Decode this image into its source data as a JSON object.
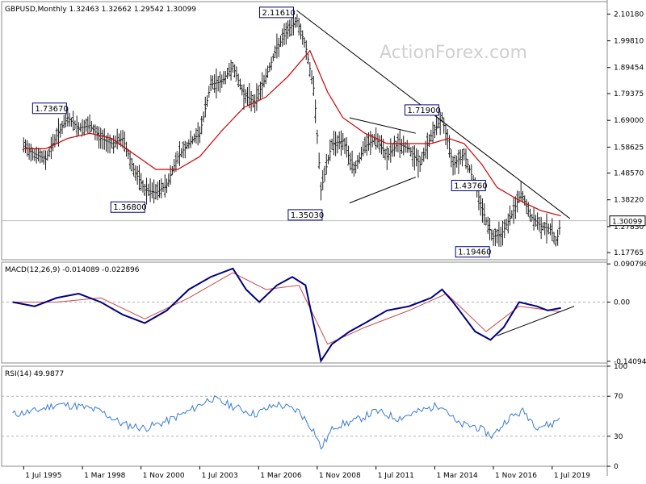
{
  "chart_data": {
    "type": "line",
    "watermark": "ActionForex.com",
    "price_panel": {
      "symbol": "GBPUSD,Monthly",
      "ohlc": [
        "1.32463",
        "1.32662",
        "1.29542",
        "1.30099"
      ],
      "y_ticks": [
        "2.10180",
        "1.99810",
        "1.89454",
        "1.79375",
        "1.69000",
        "1.58625",
        "1.48570",
        "1.38220",
        "1.27830",
        "1.17765"
      ],
      "ylim": [
        1.15,
        2.15
      ],
      "current_price": "1.30099",
      "annotations": [
        {
          "label": "1.73670",
          "date": 1997.3,
          "value": 1.7367
        },
        {
          "label": "1.36800",
          "date": 2001.0,
          "value": 1.368
        },
        {
          "label": "2.11610",
          "date": 2007.9,
          "value": 2.1161
        },
        {
          "label": "1.35030",
          "date": 2009.2,
          "value": 1.3503
        },
        {
          "label": "1.71900",
          "date": 2014.5,
          "value": 1.719
        },
        {
          "label": "1.43760",
          "date": 2016.4,
          "value": 1.4376
        },
        {
          "label": "1.19460",
          "date": 2016.8,
          "value": 1.1946
        }
      ],
      "price_series": [
        [
          1995.5,
          1.59
        ],
        [
          1996.0,
          1.56
        ],
        [
          1996.5,
          1.54
        ],
        [
          1997.0,
          1.63
        ],
        [
          1997.5,
          1.7
        ],
        [
          1998.0,
          1.66
        ],
        [
          1998.5,
          1.67
        ],
        [
          1999.0,
          1.62
        ],
        [
          1999.5,
          1.6
        ],
        [
          2000.0,
          1.62
        ],
        [
          2000.5,
          1.5
        ],
        [
          2001.0,
          1.42
        ],
        [
          2001.5,
          1.41
        ],
        [
          2002.0,
          1.44
        ],
        [
          2002.5,
          1.55
        ],
        [
          2003.0,
          1.6
        ],
        [
          2003.5,
          1.64
        ],
        [
          2004.0,
          1.83
        ],
        [
          2004.5,
          1.84
        ],
        [
          2005.0,
          1.9
        ],
        [
          2005.5,
          1.79
        ],
        [
          2006.0,
          1.76
        ],
        [
          2006.5,
          1.86
        ],
        [
          2007.0,
          1.97
        ],
        [
          2007.5,
          2.04
        ],
        [
          2007.9,
          2.08
        ],
        [
          2008.3,
          1.98
        ],
        [
          2008.7,
          1.8
        ],
        [
          2009.0,
          1.42
        ],
        [
          2009.5,
          1.6
        ],
        [
          2010.0,
          1.61
        ],
        [
          2010.5,
          1.5
        ],
        [
          2011.0,
          1.59
        ],
        [
          2011.5,
          1.62
        ],
        [
          2012.0,
          1.55
        ],
        [
          2012.5,
          1.6
        ],
        [
          2013.0,
          1.58
        ],
        [
          2013.5,
          1.52
        ],
        [
          2014.0,
          1.63
        ],
        [
          2014.5,
          1.7
        ],
        [
          2015.0,
          1.52
        ],
        [
          2015.5,
          1.56
        ],
        [
          2016.0,
          1.44
        ],
        [
          2016.5,
          1.3
        ],
        [
          2016.8,
          1.24
        ],
        [
          2017.2,
          1.25
        ],
        [
          2017.7,
          1.33
        ],
        [
          2018.1,
          1.41
        ],
        [
          2018.5,
          1.32
        ],
        [
          2019.0,
          1.28
        ],
        [
          2019.4,
          1.27
        ],
        [
          2019.7,
          1.22
        ],
        [
          2019.9,
          1.3
        ]
      ],
      "ma_series": [
        [
          1995.5,
          1.58
        ],
        [
          1996.5,
          1.58
        ],
        [
          1997.5,
          1.62
        ],
        [
          1998.5,
          1.64
        ],
        [
          1999.5,
          1.62
        ],
        [
          2000.5,
          1.56
        ],
        [
          2001.5,
          1.5
        ],
        [
          2002.5,
          1.5
        ],
        [
          2003.5,
          1.55
        ],
        [
          2004.5,
          1.65
        ],
        [
          2005.5,
          1.74
        ],
        [
          2006.5,
          1.78
        ],
        [
          2007.5,
          1.86
        ],
        [
          2008.5,
          1.96
        ],
        [
          2009.3,
          1.8
        ],
        [
          2010.0,
          1.7
        ],
        [
          2011.0,
          1.64
        ],
        [
          2012.0,
          1.6
        ],
        [
          2013.0,
          1.6
        ],
        [
          2014.0,
          1.6
        ],
        [
          2014.8,
          1.62
        ],
        [
          2015.5,
          1.6
        ],
        [
          2016.3,
          1.52
        ],
        [
          2017.0,
          1.43
        ],
        [
          2018.0,
          1.38
        ],
        [
          2019.0,
          1.34
        ],
        [
          2019.9,
          1.32
        ]
      ],
      "trendlines": [
        [
          [
            2007.9,
            2.116
          ],
          [
            2020.3,
            1.31
          ]
        ],
        [
          [
            2010.3,
            1.7
          ],
          [
            2013.3,
            1.64
          ]
        ],
        [
          [
            2010.3,
            1.37
          ],
          [
            2013.3,
            1.47
          ]
        ]
      ]
    },
    "macd_panel": {
      "title": "MACD(12,26,9) -0.014089 -0.022896",
      "y_ticks": [
        "0.090798",
        "0.00",
        "-0.14094"
      ],
      "ylim": [
        -0.145,
        0.095
      ],
      "macd_series": [
        [
          1995.0,
          0.0
        ],
        [
          1996.0,
          -0.01
        ],
        [
          1997.0,
          0.01
        ],
        [
          1998.0,
          0.02
        ],
        [
          1999.0,
          0.0
        ],
        [
          2000.0,
          -0.03
        ],
        [
          2001.0,
          -0.05
        ],
        [
          2002.0,
          -0.02
        ],
        [
          2003.0,
          0.03
        ],
        [
          2004.0,
          0.06
        ],
        [
          2005.0,
          0.08
        ],
        [
          2005.6,
          0.03
        ],
        [
          2006.2,
          0.0
        ],
        [
          2007.0,
          0.04
        ],
        [
          2007.7,
          0.06
        ],
        [
          2008.3,
          0.04
        ],
        [
          2008.7,
          -0.06
        ],
        [
          2009.0,
          -0.14
        ],
        [
          2009.5,
          -0.1
        ],
        [
          2010.3,
          -0.07
        ],
        [
          2011.0,
          -0.05
        ],
        [
          2012.0,
          -0.02
        ],
        [
          2013.0,
          -0.01
        ],
        [
          2014.0,
          0.01
        ],
        [
          2014.5,
          0.03
        ],
        [
          2015.0,
          0.0
        ],
        [
          2016.0,
          -0.07
        ],
        [
          2016.7,
          -0.09
        ],
        [
          2017.3,
          -0.06
        ],
        [
          2018.0,
          0.0
        ],
        [
          2018.8,
          -0.01
        ],
        [
          2019.3,
          -0.02
        ],
        [
          2019.9,
          -0.014
        ]
      ],
      "signal_series": [
        [
          1995.0,
          0.0
        ],
        [
          1997.0,
          0.0
        ],
        [
          1999.0,
          0.01
        ],
        [
          2001.0,
          -0.04
        ],
        [
          2003.0,
          0.01
        ],
        [
          2005.0,
          0.07
        ],
        [
          2006.5,
          0.03
        ],
        [
          2008.0,
          0.04
        ],
        [
          2009.3,
          -0.1
        ],
        [
          2011.0,
          -0.06
        ],
        [
          2013.0,
          -0.02
        ],
        [
          2014.7,
          0.02
        ],
        [
          2016.5,
          -0.07
        ],
        [
          2018.0,
          -0.01
        ],
        [
          2019.9,
          -0.023
        ]
      ],
      "trendline": [
        [
          2017.0,
          -0.08
        ],
        [
          2020.5,
          -0.01
        ]
      ]
    },
    "rsi_panel": {
      "title": "RSI(14) 49.9877",
      "y_ticks": [
        "100",
        "70",
        "30",
        "0"
      ],
      "ylim": [
        0,
        100
      ],
      "rsi_series": [
        [
          1995.0,
          52
        ],
        [
          1996.0,
          55
        ],
        [
          1997.0,
          62
        ],
        [
          1998.0,
          60
        ],
        [
          1999.0,
          55
        ],
        [
          2000.0,
          42
        ],
        [
          2001.0,
          38
        ],
        [
          2002.0,
          45
        ],
        [
          2003.0,
          55
        ],
        [
          2004.0,
          68
        ],
        [
          2005.0,
          60
        ],
        [
          2006.0,
          52
        ],
        [
          2007.0,
          62
        ],
        [
          2008.0,
          55
        ],
        [
          2008.7,
          35
        ],
        [
          2009.0,
          18
        ],
        [
          2009.6,
          40
        ],
        [
          2010.5,
          45
        ],
        [
          2011.5,
          55
        ],
        [
          2012.5,
          48
        ],
        [
          2013.5,
          55
        ],
        [
          2014.5,
          62
        ],
        [
          2015.2,
          42
        ],
        [
          2016.0,
          40
        ],
        [
          2016.8,
          30
        ],
        [
          2017.5,
          48
        ],
        [
          2018.2,
          55
        ],
        [
          2018.8,
          40
        ],
        [
          2019.5,
          42
        ],
        [
          2019.9,
          50
        ]
      ]
    },
    "x_ticks": [
      "1 Jul 1995",
      "1 Mar 1998",
      "1 Nov 2000",
      "1 Jul 2003",
      "1 Mar 2006",
      "1 Nov 2008",
      "1 Jul 2011",
      "1 Mar 2014",
      "1 Nov 2016",
      "1 Jul 2019"
    ],
    "x_tick_dates": [
      1995.5,
      1998.17,
      2000.83,
      2003.5,
      2006.17,
      2008.83,
      2011.5,
      2014.17,
      2016.83,
      2019.5
    ],
    "x_range": [
      1994.5,
      2022.0
    ],
    "colors": {
      "price": "#1a1a1a",
      "ma": "#cc0000",
      "macd": "#00007f",
      "signal": "#c94a4a",
      "rsi": "#3a7bd5",
      "grid": "#b0b0b0"
    }
  }
}
